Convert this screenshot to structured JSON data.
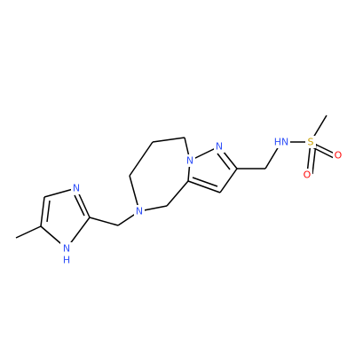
{
  "atom_labels": [
    "N",
    "N",
    "H",
    "N",
    "N",
    "N",
    "HN",
    "S",
    "O",
    "O"
  ]
}
